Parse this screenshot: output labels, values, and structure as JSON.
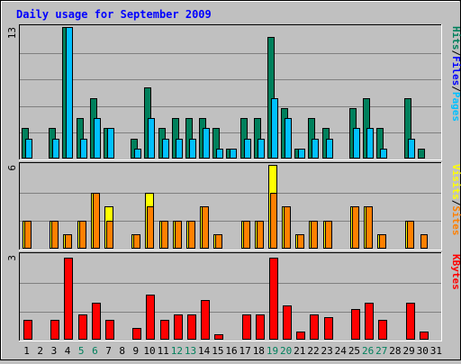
{
  "chart_data": {
    "type": "bar",
    "title": "Daily usage for September 2009",
    "categories": [
      "1",
      "2",
      "3",
      "4",
      "5",
      "6",
      "7",
      "8",
      "9",
      "10",
      "11",
      "12",
      "13",
      "14",
      "15",
      "16",
      "17",
      "18",
      "19",
      "20",
      "21",
      "22",
      "23",
      "24",
      "25",
      "26",
      "27",
      "28",
      "29",
      "30",
      "31"
    ],
    "weekend_days": [
      "5",
      "6",
      "12",
      "13",
      "19",
      "20",
      "26",
      "27"
    ],
    "panels": [
      {
        "id": "hits_files_pages",
        "ymax_label": "13",
        "ylim": [
          0,
          13
        ],
        "series": [
          {
            "name": "Hits",
            "color": "#00805c",
            "values": [
              3,
              0,
              3,
              13,
              4,
              6,
              3,
              0,
              2,
              7,
              3,
              4,
              4,
              4,
              3,
              1,
              4,
              4,
              12,
              5,
              1,
              4,
              3,
              0,
              5,
              6,
              3,
              0,
              6,
              1,
              0
            ]
          },
          {
            "name": "Files",
            "color": "#00c0ff",
            "values": [
              2,
              0,
              2,
              13,
              2,
              4,
              3,
              0,
              1,
              4,
              2,
              2,
              2,
              3,
              1,
              1,
              2,
              2,
              6,
              4,
              1,
              2,
              2,
              0,
              3,
              3,
              1,
              0,
              2,
              0,
              0
            ]
          },
          {
            "name": "Pages",
            "color": "#00c0ff",
            "values": []
          }
        ],
        "legend": [
          {
            "label": "Pages",
            "color": "#00c0ff"
          },
          {
            "label": "/",
            "color": "#000000"
          },
          {
            "label": "Files",
            "color": "#0000ff"
          },
          {
            "label": "/",
            "color": "#000000"
          },
          {
            "label": "Hits",
            "color": "#00805c"
          }
        ]
      },
      {
        "id": "sites_visits",
        "ymax_label": "6",
        "ylim": [
          0,
          6
        ],
        "series": [
          {
            "name": "Visits",
            "color": "#ffff00",
            "values": [
              2,
              0,
              2,
              1,
              2,
              4,
              3,
              0,
              1,
              4,
              2,
              2,
              2,
              3,
              1,
              0,
              2,
              2,
              6,
              3,
              1,
              2,
              2,
              0,
              3,
              3,
              1,
              0,
              2,
              0,
              0
            ]
          },
          {
            "name": "Sites",
            "color": "#ff8000",
            "values": [
              2,
              0,
              2,
              1,
              2,
              4,
              2,
              0,
              1,
              3,
              2,
              2,
              2,
              3,
              1,
              0,
              2,
              2,
              4,
              3,
              1,
              2,
              2,
              0,
              3,
              3,
              1,
              0,
              2,
              1,
              0
            ]
          }
        ],
        "legend": [
          {
            "label": "Sites",
            "color": "#ff8000"
          },
          {
            "label": "/",
            "color": "#000000"
          },
          {
            "label": "Visits",
            "color": "#ffff00"
          }
        ]
      },
      {
        "id": "kbytes",
        "ymax_label": "3",
        "ylim": [
          0,
          3
        ],
        "series": [
          {
            "name": "KBytes",
            "color": "#ff0000",
            "values": [
              0.7,
              0,
              0.7,
              2.9,
              0.9,
              1.3,
              0.7,
              0,
              0.4,
              1.6,
              0.7,
              0.9,
              0.9,
              1.4,
              0.2,
              0,
              0.9,
              0.9,
              2.9,
              1.2,
              0.3,
              0.9,
              0.8,
              0,
              1.1,
              1.3,
              0.7,
              0,
              1.3,
              0.3,
              0
            ]
          }
        ],
        "legend": [
          {
            "label": "KBytes",
            "color": "#ff0000"
          }
        ]
      }
    ],
    "colors": {
      "background": "#c0c0c0",
      "title": "#0000ff",
      "gridline": "#808080",
      "weekday_label": "#000000",
      "weekend_label": "#00805c"
    }
  }
}
